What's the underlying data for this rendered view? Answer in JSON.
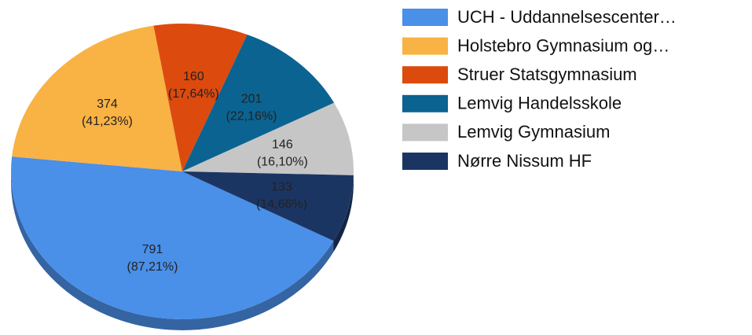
{
  "chart_data": {
    "type": "pie",
    "categories": [
      "UCH - Uddannelsescenter…",
      "Holstebro Gymnasium og…",
      "Struer Statsgymnasium",
      "Lemvig Handelsskole",
      "Lemvig Gymnasium",
      "Nørre Nissum HF"
    ],
    "values": [
      791,
      374,
      160,
      201,
      146,
      133
    ],
    "value_labels": [
      "791\n(87,21%)",
      "374\n(41,23%)",
      "160\n(17,64%)",
      "201\n(22,16%)",
      "146\n(16,10%)",
      "133\n(14,66%)"
    ],
    "colors": [
      "#4a8fe8",
      "#f9b244",
      "#dc4a0e",
      "#0b6391",
      "#c6c6c6",
      "#1b3563"
    ],
    "legend": "right"
  }
}
